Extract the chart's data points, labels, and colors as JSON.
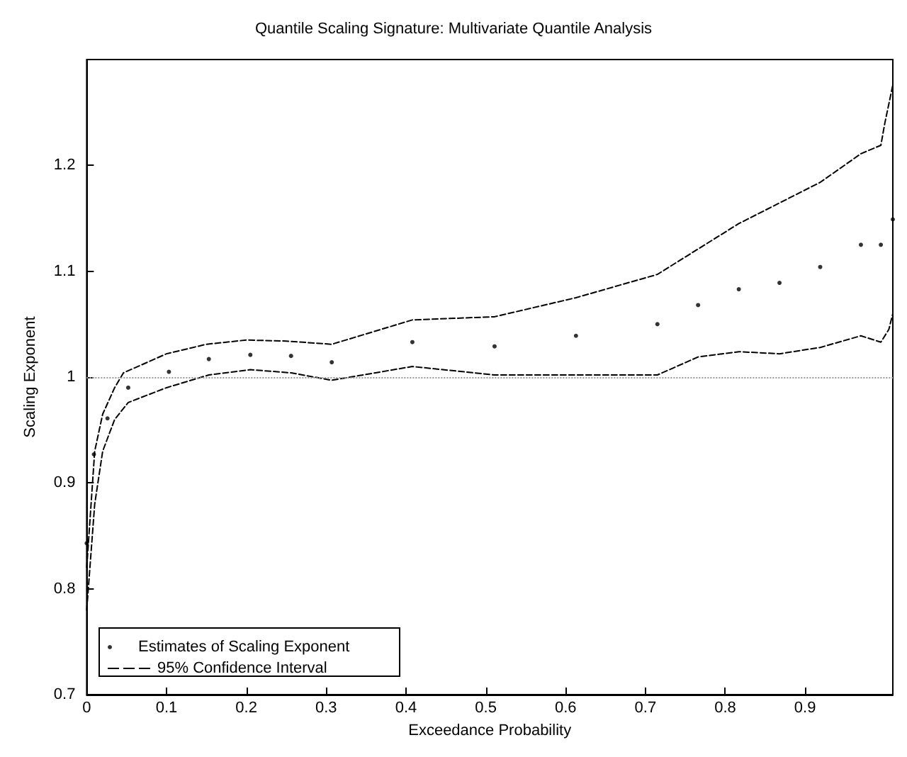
{
  "chart_data": {
    "type": "scatter",
    "title": "Quantile Scaling Signature: Multivariate Quantile Analysis",
    "xlabel": "Exceedance Probability",
    "ylabel": "Scaling Exponent",
    "xlim": [
      0,
      1.01
    ],
    "xticks": [
      0,
      0.1,
      0.2,
      0.3,
      0.4,
      0.5,
      0.6,
      0.7,
      0.8,
      0.9
    ],
    "ylim": [
      0.7,
      1.3
    ],
    "yticks": [
      0.7,
      0.8,
      0.9,
      1,
      1.1,
      1.2
    ],
    "grid": false,
    "legend": "bottom left",
    "series": [
      {
        "name": "Estimates of Scaling Exponent",
        "marker": "circle",
        "color": "#000000",
        "x": [
          0,
          0.009,
          0.026,
          0.052,
          0.103,
          0.153,
          0.205,
          0.256,
          0.307,
          0.408,
          0.511,
          0.613,
          0.715,
          0.766,
          0.817,
          0.868,
          0.919,
          0.97,
          0.995,
          1.01
        ],
        "values": [
          0.843,
          0.927,
          0.961,
          0.99,
          1.005,
          1.017,
          1.021,
          1.02,
          1.014,
          1.033,
          1.029,
          1.039,
          1.05,
          1.068,
          1.083,
          1.089,
          1.104,
          1.125,
          1.125,
          1.149
        ]
      },
      {
        "name": "95% Confidence Interval",
        "type": "line",
        "line_style": "dashed",
        "marker": "none",
        "color": "#000000",
        "x": [
          0,
          0.01,
          0.02,
          0.035,
          0.046,
          0.1,
          0.15,
          0.2,
          0.25,
          0.307,
          0.408,
          0.511,
          0.613,
          0.715,
          0.817,
          0.919,
          0.97,
          0.995,
          1.0,
          1.01
        ],
        "values": [
          0.82,
          0.93,
          0.965,
          0.99,
          1.004,
          1.022,
          1.031,
          1.035,
          1.034,
          1.031,
          1.054,
          1.057,
          1.075,
          1.097,
          1.145,
          1.184,
          1.211,
          1.219,
          1.24,
          1.276
        ]
      },
      {
        "type": "line",
        "line_style": "dashed",
        "marker": "none",
        "color": "#000000",
        "x": [
          0,
          0.01,
          0.02,
          0.035,
          0.052,
          0.1,
          0.153,
          0.205,
          0.256,
          0.307,
          0.408,
          0.511,
          0.613,
          0.715,
          0.766,
          0.817,
          0.868,
          0.919,
          0.97,
          0.995,
          1.005,
          1.01
        ],
        "values": [
          0.78,
          0.88,
          0.93,
          0.96,
          0.976,
          0.99,
          1.002,
          1.007,
          1.004,
          0.997,
          1.01,
          1.002,
          1.002,
          1.002,
          1.019,
          1.024,
          1.022,
          1.028,
          1.039,
          1.033,
          1.045,
          1.06
        ]
      }
    ],
    "ref_lines": [
      {
        "axis": "y",
        "value": 1,
        "color": "#999999",
        "line_style": "dotted"
      }
    ]
  }
}
